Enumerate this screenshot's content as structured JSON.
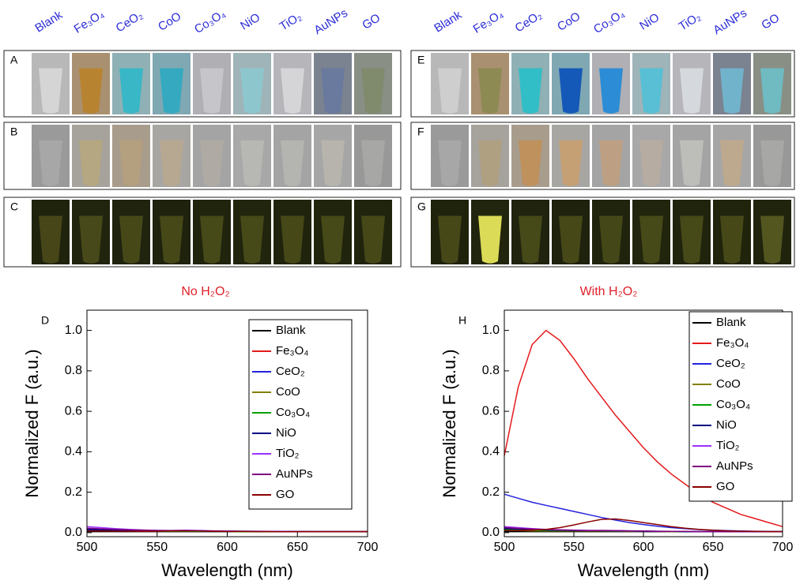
{
  "columns": [
    "Blank",
    "Fe₃O₄",
    "CeO₂",
    "CoO",
    "Co₃O₄",
    "NiO",
    "TiO₂",
    "AuNPs",
    "GO"
  ],
  "panels": [
    "A",
    "B",
    "C",
    "E",
    "F",
    "G"
  ],
  "chart_data": [
    {
      "type": "line",
      "label": "D",
      "title": "No H₂O₂",
      "x_label": "Wavelength (nm)",
      "y_label": "Normalized F (a.u.)",
      "x": [
        500,
        510,
        520,
        530,
        540,
        550,
        560,
        570,
        580,
        590,
        600,
        610,
        620,
        630,
        640,
        650,
        660,
        670,
        680,
        690,
        700
      ],
      "xlim": [
        500,
        700
      ],
      "xticks": [
        500,
        550,
        600,
        650,
        700
      ],
      "ylim": [
        -0.02,
        1.1
      ],
      "yticks": [
        {
          "value": 0,
          "label": "0.0"
        },
        0.2,
        0.4,
        0.6,
        0.8,
        {
          "value": 1,
          "label": "1.0"
        }
      ],
      "series": [
        {
          "name": "Blank",
          "color": "#000000",
          "values": [
            0.005,
            0.005,
            0.005,
            0.005,
            0.005,
            0.005,
            0.005,
            0.005,
            0.005,
            0.005,
            0.005,
            0.005,
            0.005,
            0.005,
            0.005,
            0.005,
            0.005,
            0.005,
            0.005,
            0.005,
            0.005
          ]
        },
        {
          "name": "Fe₃O₄",
          "color": "#e41a1c",
          "values": [
            0.01,
            0.01,
            0.008,
            0.008,
            0.007,
            0.007,
            0.007,
            0.008,
            0.007,
            0.006,
            0.006,
            0.005,
            0.005,
            0.005,
            0.005,
            0.005,
            0.005,
            0.005,
            0.005,
            0.005,
            0.005
          ]
        },
        {
          "name": "CeO₂",
          "color": "#2222dd",
          "values": [
            0.02,
            0.018,
            0.015,
            0.013,
            0.012,
            0.011,
            0.01,
            0.01,
            0.009,
            0.008,
            0.008,
            0.007,
            0.007,
            0.006,
            0.006,
            0.006,
            0.005,
            0.005,
            0.005,
            0.005,
            0.005
          ]
        },
        {
          "name": "CoO",
          "color": "#808000",
          "values": [
            0.01,
            0.01,
            0.009,
            0.008,
            0.008,
            0.007,
            0.007,
            0.007,
            0.006,
            0.006,
            0.006,
            0.005,
            0.005,
            0.005,
            0.005,
            0.005,
            0.005,
            0.005,
            0.005,
            0.005,
            0.005
          ]
        },
        {
          "name": "Co₃O₄",
          "color": "#00a000",
          "values": [
            0.01,
            0.01,
            0.009,
            0.008,
            0.008,
            0.007,
            0.007,
            0.007,
            0.006,
            0.006,
            0.006,
            0.005,
            0.005,
            0.005,
            0.005,
            0.005,
            0.005,
            0.005,
            0.005,
            0.005,
            0.005
          ]
        },
        {
          "name": "NiO",
          "color": "#000080",
          "values": [
            0.015,
            0.013,
            0.012,
            0.01,
            0.01,
            0.009,
            0.009,
            0.009,
            0.008,
            0.007,
            0.007,
            0.006,
            0.006,
            0.006,
            0.005,
            0.005,
            0.005,
            0.005,
            0.005,
            0.005,
            0.005
          ]
        },
        {
          "name": "TiO₂",
          "color": "#9b30ff",
          "values": [
            0.03,
            0.025,
            0.02,
            0.016,
            0.013,
            0.011,
            0.011,
            0.012,
            0.011,
            0.009,
            0.008,
            0.007,
            0.006,
            0.006,
            0.006,
            0.005,
            0.005,
            0.005,
            0.005,
            0.005,
            0.005
          ]
        },
        {
          "name": "AuNPs",
          "color": "#800080",
          "values": [
            0.022,
            0.019,
            0.016,
            0.014,
            0.012,
            0.011,
            0.01,
            0.01,
            0.009,
            0.008,
            0.007,
            0.007,
            0.006,
            0.006,
            0.005,
            0.005,
            0.005,
            0.005,
            0.005,
            0.005,
            0.005
          ]
        },
        {
          "name": "GO",
          "color": "#8b0000",
          "values": [
            0.008,
            0.008,
            0.007,
            0.007,
            0.007,
            0.007,
            0.008,
            0.009,
            0.008,
            0.007,
            0.006,
            0.006,
            0.005,
            0.005,
            0.005,
            0.005,
            0.005,
            0.005,
            0.005,
            0.005,
            0.005
          ]
        }
      ]
    },
    {
      "type": "line",
      "label": "H",
      "title": "With H₂O₂",
      "x_label": "Wavelength (nm)",
      "y_label": "Normalized F (a.u.)",
      "x": [
        500,
        510,
        520,
        530,
        540,
        550,
        560,
        570,
        580,
        590,
        600,
        610,
        620,
        630,
        640,
        650,
        660,
        670,
        680,
        690,
        700
      ],
      "xlim": [
        500,
        700
      ],
      "xticks": [
        500,
        550,
        600,
        650,
        700
      ],
      "ylim": [
        -0.02,
        1.1
      ],
      "yticks": [
        {
          "value": 0,
          "label": "0.0"
        },
        0.2,
        0.4,
        0.6,
        0.8,
        {
          "value": 1,
          "label": "1.0"
        }
      ],
      "series": [
        {
          "name": "Blank",
          "color": "#000000",
          "values": [
            0.005,
            0.005,
            0.005,
            0.005,
            0.005,
            0.005,
            0.005,
            0.005,
            0.005,
            0.005,
            0.005,
            0.005,
            0.005,
            0.005,
            0.005,
            0.005,
            0.005,
            0.005,
            0.005,
            0.005,
            0.005
          ]
        },
        {
          "name": "Fe₃O₄",
          "color": "#e41a1c",
          "values": [
            0.38,
            0.72,
            0.93,
            1.0,
            0.95,
            0.86,
            0.76,
            0.67,
            0.58,
            0.5,
            0.42,
            0.35,
            0.29,
            0.24,
            0.19,
            0.15,
            0.12,
            0.09,
            0.07,
            0.05,
            0.03
          ]
        },
        {
          "name": "CeO₂",
          "color": "#2222dd",
          "values": [
            0.19,
            0.17,
            0.15,
            0.135,
            0.12,
            0.105,
            0.09,
            0.075,
            0.062,
            0.05,
            0.04,
            0.032,
            0.025,
            0.02,
            0.015,
            0.012,
            0.01,
            0.008,
            0.007,
            0.006,
            0.005
          ]
        },
        {
          "name": "CoO",
          "color": "#808000",
          "values": [
            0.01,
            0.01,
            0.009,
            0.008,
            0.008,
            0.008,
            0.008,
            0.008,
            0.007,
            0.007,
            0.006,
            0.006,
            0.005,
            0.005,
            0.005,
            0.005,
            0.005,
            0.005,
            0.005,
            0.005,
            0.005
          ]
        },
        {
          "name": "Co₃O₄",
          "color": "#00a000",
          "values": [
            0.015,
            0.013,
            0.012,
            0.011,
            0.01,
            0.01,
            0.01,
            0.01,
            0.009,
            0.008,
            0.007,
            0.006,
            0.006,
            0.005,
            0.005,
            0.005,
            0.005,
            0.005,
            0.005,
            0.005,
            0.005
          ]
        },
        {
          "name": "NiO",
          "color": "#000080",
          "values": [
            0.02,
            0.018,
            0.015,
            0.013,
            0.012,
            0.011,
            0.01,
            0.01,
            0.009,
            0.008,
            0.007,
            0.006,
            0.006,
            0.005,
            0.005,
            0.005,
            0.005,
            0.005,
            0.005,
            0.005,
            0.005
          ]
        },
        {
          "name": "TiO₂",
          "color": "#9b30ff",
          "values": [
            0.03,
            0.025,
            0.02,
            0.016,
            0.014,
            0.012,
            0.011,
            0.011,
            0.01,
            0.009,
            0.008,
            0.007,
            0.006,
            0.006,
            0.005,
            0.005,
            0.005,
            0.005,
            0.005,
            0.005,
            0.005
          ]
        },
        {
          "name": "AuNPs",
          "color": "#800080",
          "values": [
            0.025,
            0.021,
            0.018,
            0.015,
            0.013,
            0.012,
            0.011,
            0.011,
            0.01,
            0.009,
            0.008,
            0.007,
            0.006,
            0.006,
            0.005,
            0.005,
            0.005,
            0.005,
            0.005,
            0.005,
            0.005
          ]
        },
        {
          "name": "GO",
          "color": "#8b0000",
          "values": [
            0.01,
            0.01,
            0.012,
            0.016,
            0.025,
            0.038,
            0.053,
            0.066,
            0.068,
            0.06,
            0.05,
            0.04,
            0.03,
            0.022,
            0.016,
            0.012,
            0.009,
            0.007,
            0.006,
            0.005,
            0.005
          ]
        }
      ]
    }
  ]
}
